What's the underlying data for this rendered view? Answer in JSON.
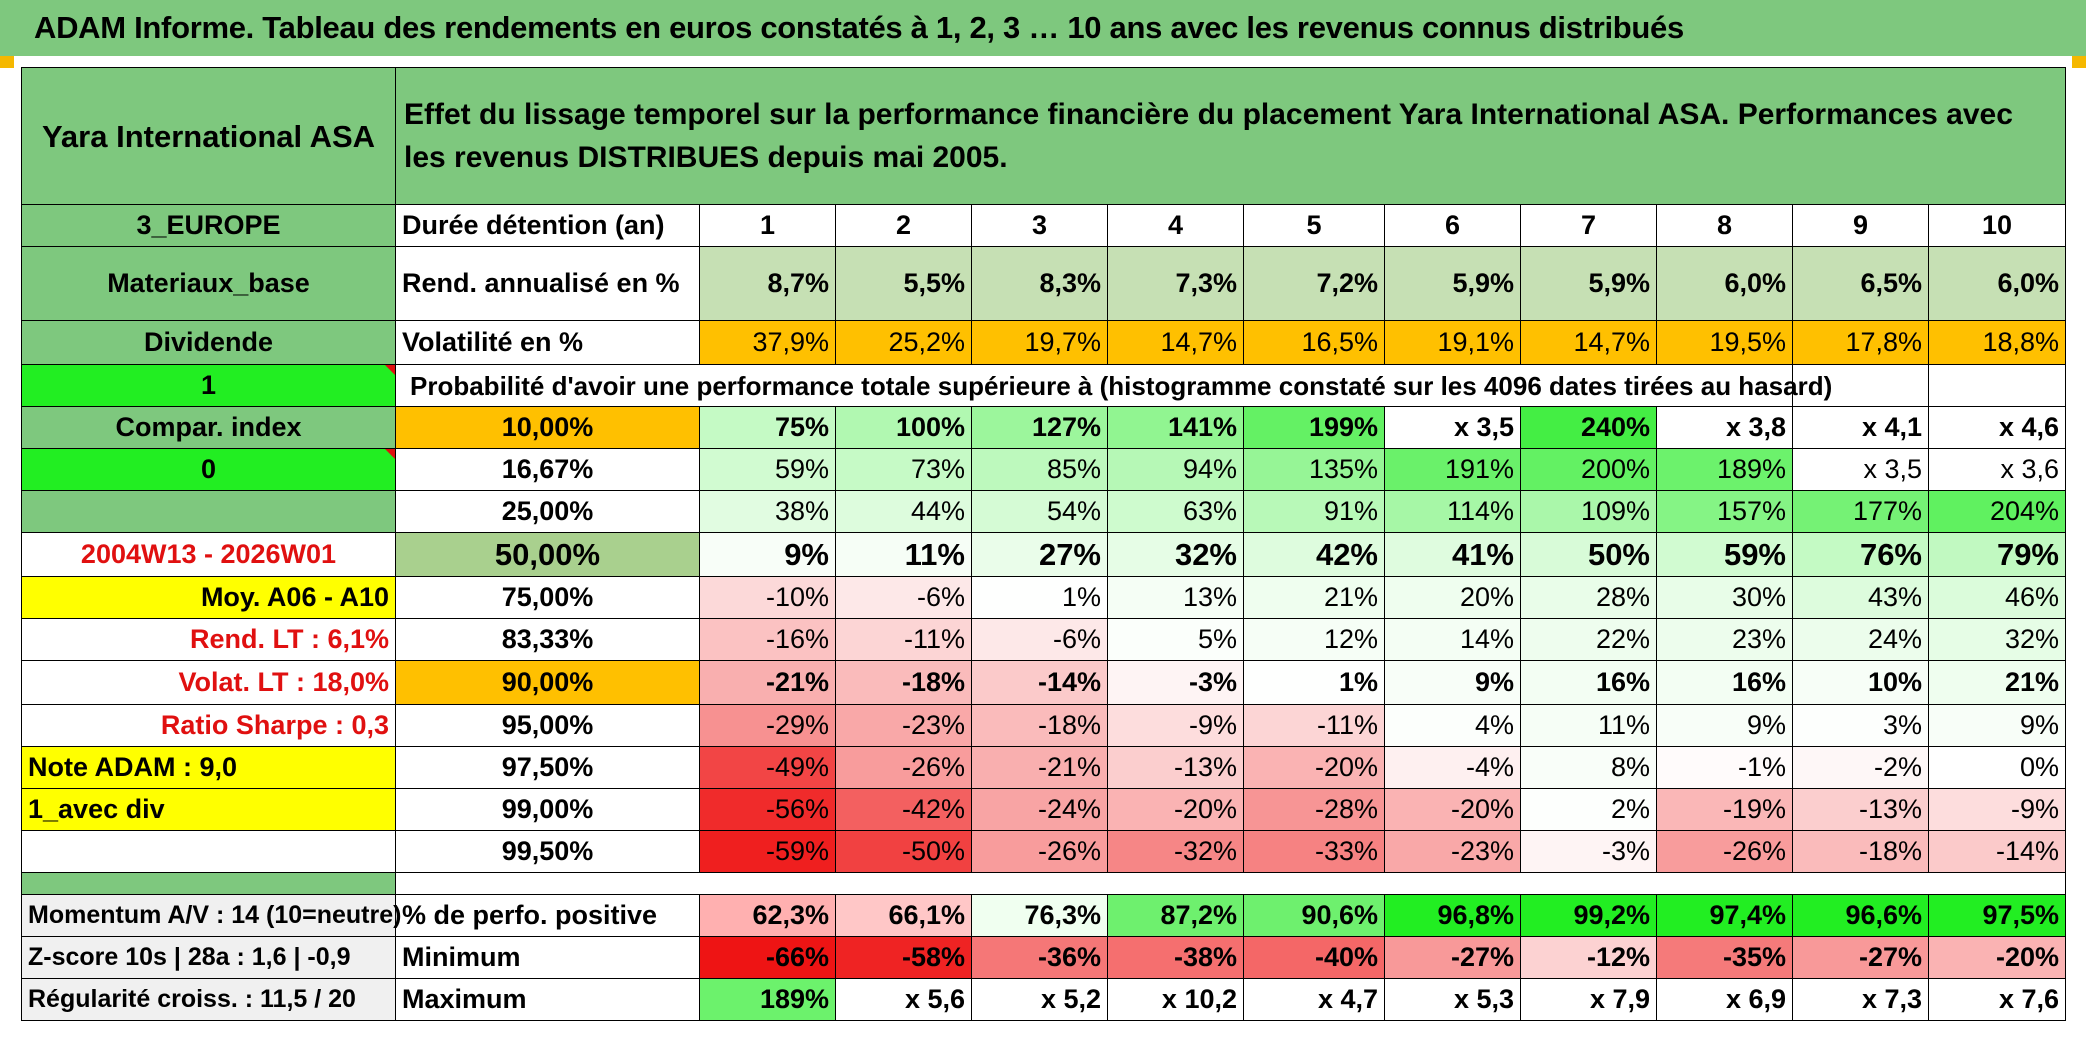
{
  "title": "ADAM Informe. Tableau des rendements en euros constatés à 1, 2, 3 … 10 ans avec les revenus connus distribués",
  "colors": {
    "header_green": "#7ec87e",
    "bright_green": "#22ee22",
    "orange": "#ffc000",
    "yellow": "#ffff00",
    "label_red": "#e01010"
  },
  "left": {
    "company": "Yara International ASA",
    "region": "3_EUROPE",
    "sector": "Materiaux_base",
    "div_type": "Dividende",
    "flag1": "1",
    "compar_index": "Compar. index",
    "flag0": "0",
    "blank": "",
    "period": "2004W13 - 2026W01",
    "moy": "Moy. A06 - A10",
    "rend_lt": "Rend. LT :   6,1%",
    "volat_lt": "Volat. LT :   18,0%",
    "sharpe": "Ratio Sharpe :    0,3",
    "note": "Note ADAM : 9,0",
    "avec_div": "1_avec div",
    "momentum": "Momentum A/V : 14 (10=neutre)",
    "zscore": "Z-score 10s | 28a : 1,6 | -0,9",
    "regularite": "Régularité croiss. : 11,5 / 20"
  },
  "description": "Effet du lissage temporel sur la performance financière du placement Yara International ASA. Performances avec les revenus DISTRIBUES depuis mai 2005.",
  "duration_label": "Durée détention (an)",
  "years": [
    "1",
    "2",
    "3",
    "4",
    "5",
    "6",
    "7",
    "8",
    "9",
    "10"
  ],
  "rend_label": "Rend. annualisé en %",
  "rend": [
    "8,7%",
    "5,5%",
    "8,3%",
    "7,3%",
    "7,2%",
    "5,9%",
    "5,9%",
    "6,0%",
    "6,5%",
    "6,0%"
  ],
  "vol_label": "Volatilité en %",
  "vol": [
    "37,9%",
    "25,2%",
    "19,7%",
    "14,7%",
    "16,5%",
    "19,1%",
    "14,7%",
    "19,5%",
    "17,8%",
    "18,8%"
  ],
  "proba_label": "Probabilité d'avoir une performance totale supérieure à (histogramme constaté sur les 4096 dates tirées au hasard)",
  "prob_rows": [
    {
      "pct": "10,00%",
      "vals": [
        "75%",
        "100%",
        "127%",
        "141%",
        "199%",
        "x 3,5",
        "240%",
        "x 3,8",
        "x 4,1",
        "x 4,6"
      ]
    },
    {
      "pct": "16,67%",
      "vals": [
        "59%",
        "73%",
        "85%",
        "94%",
        "135%",
        "191%",
        "200%",
        "189%",
        "x 3,5",
        "x 3,6"
      ]
    },
    {
      "pct": "25,00%",
      "vals": [
        "38%",
        "44%",
        "54%",
        "63%",
        "91%",
        "114%",
        "109%",
        "157%",
        "177%",
        "204%"
      ]
    },
    {
      "pct": "50,00%",
      "vals": [
        "9%",
        "11%",
        "27%",
        "32%",
        "42%",
        "41%",
        "50%",
        "59%",
        "76%",
        "79%"
      ]
    },
    {
      "pct": "75,00%",
      "vals": [
        "-10%",
        "-6%",
        "1%",
        "13%",
        "21%",
        "20%",
        "28%",
        "30%",
        "43%",
        "46%"
      ]
    },
    {
      "pct": "83,33%",
      "vals": [
        "-16%",
        "-11%",
        "-6%",
        "5%",
        "12%",
        "14%",
        "22%",
        "23%",
        "24%",
        "32%"
      ]
    },
    {
      "pct": "90,00%",
      "vals": [
        "-21%",
        "-18%",
        "-14%",
        "-3%",
        "1%",
        "9%",
        "16%",
        "16%",
        "10%",
        "21%"
      ]
    },
    {
      "pct": "95,00%",
      "vals": [
        "-29%",
        "-23%",
        "-18%",
        "-9%",
        "-11%",
        "4%",
        "11%",
        "9%",
        "3%",
        "9%"
      ]
    },
    {
      "pct": "97,50%",
      "vals": [
        "-49%",
        "-26%",
        "-21%",
        "-13%",
        "-20%",
        "-4%",
        "8%",
        "-1%",
        "-2%",
        "0%"
      ]
    },
    {
      "pct": "99,00%",
      "vals": [
        "-56%",
        "-42%",
        "-24%",
        "-20%",
        "-28%",
        "-20%",
        "2%",
        "-19%",
        "-13%",
        "-9%"
      ]
    },
    {
      "pct": "99,50%",
      "vals": [
        "-59%",
        "-50%",
        "-26%",
        "-32%",
        "-33%",
        "-23%",
        "-3%",
        "-26%",
        "-18%",
        "-14%"
      ]
    }
  ],
  "pos_label": "% de perfo. positive",
  "pos": [
    "62,3%",
    "66,1%",
    "76,3%",
    "87,2%",
    "90,6%",
    "96,8%",
    "99,2%",
    "97,4%",
    "96,6%",
    "97,5%"
  ],
  "min_label": "Minimum",
  "min": [
    "-66%",
    "-58%",
    "-36%",
    "-38%",
    "-40%",
    "-27%",
    "-12%",
    "-35%",
    "-27%",
    "-20%"
  ],
  "max_label": "Maximum",
  "max": [
    "189%",
    "x 5,6",
    "x 5,2",
    "x 10,2",
    "x 4,7",
    "x 5,3",
    "x 7,9",
    "x 6,9",
    "x 7,3",
    "x 7,6"
  ]
}
